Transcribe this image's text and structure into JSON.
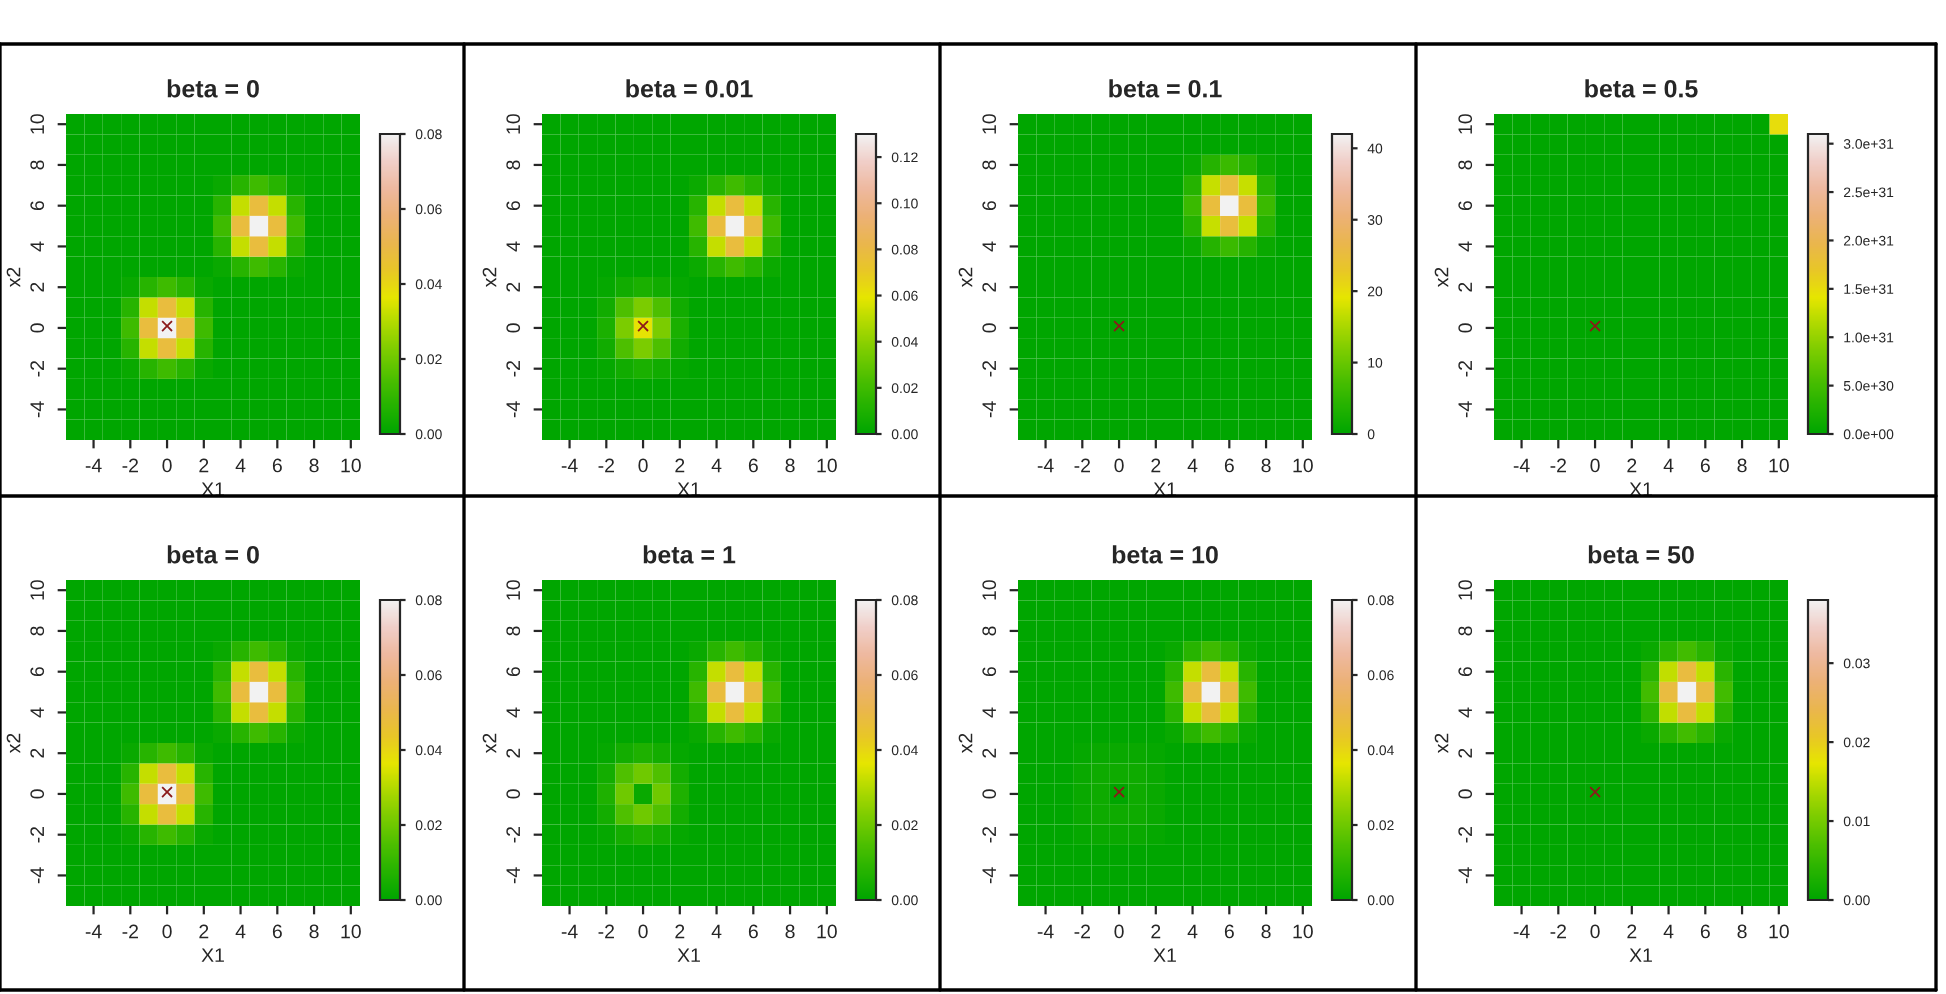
{
  "chart_data": [
    {
      "type": "heatmap",
      "title": "beta = 0",
      "xlabel": "X1",
      "ylabel": "x2",
      "categories": [
        null,
        "-4",
        null,
        "-2",
        null,
        "0",
        null,
        "2",
        null,
        "4",
        null,
        "6",
        null,
        "8",
        null,
        "10"
      ],
      "y_categories": [
        "10",
        null,
        "8",
        null,
        "6",
        null,
        "4",
        null,
        "2",
        null,
        "0",
        null,
        "-2",
        null,
        "-4",
        null
      ],
      "cells": [
        [
          0,
          0,
          0,
          0,
          0,
          0,
          0,
          0,
          0,
          0,
          0,
          0,
          0,
          0,
          0,
          0
        ],
        [
          0,
          0,
          0,
          0,
          0,
          0,
          0,
          0,
          0,
          0,
          0,
          0,
          0,
          0,
          0,
          0
        ],
        [
          0,
          0,
          0,
          0,
          0,
          0,
          0,
          0,
          0,
          0,
          0,
          0,
          0,
          0,
          0,
          0
        ],
        [
          0,
          0,
          0,
          0,
          0,
          0,
          0,
          0,
          0.002,
          0.008,
          0.012,
          0.008,
          0.002,
          0,
          0,
          0
        ],
        [
          0,
          0,
          0,
          0,
          0,
          0,
          0,
          0,
          0.008,
          0.032,
          0.048,
          0.032,
          0.008,
          0,
          0,
          0
        ],
        [
          0,
          0,
          0,
          0,
          0,
          0,
          0,
          0,
          0.012,
          0.048,
          0.08,
          0.048,
          0.012,
          0,
          0,
          0
        ],
        [
          0,
          0,
          0,
          0,
          0,
          0,
          0,
          0,
          0.008,
          0.032,
          0.048,
          0.032,
          0.008,
          0,
          0,
          0
        ],
        [
          0,
          0,
          0,
          0,
          0,
          0,
          0,
          0,
          0.002,
          0.008,
          0.012,
          0.008,
          0.002,
          0,
          0,
          0
        ],
        [
          0,
          0,
          0,
          0.002,
          0.008,
          0.012,
          0.008,
          0.002,
          0,
          0,
          0,
          0,
          0,
          0,
          0,
          0
        ],
        [
          0,
          0,
          0,
          0.008,
          0.032,
          0.048,
          0.032,
          0.008,
          0,
          0,
          0,
          0,
          0,
          0,
          0,
          0
        ],
        [
          0,
          0,
          0,
          0.012,
          0.048,
          0.08,
          0.048,
          0.012,
          0,
          0,
          0,
          0,
          0,
          0,
          0,
          0
        ],
        [
          0,
          0,
          0,
          0.008,
          0.032,
          0.048,
          0.032,
          0.008,
          0,
          0,
          0,
          0,
          0,
          0,
          0,
          0
        ],
        [
          0,
          0,
          0,
          0.002,
          0.008,
          0.012,
          0.008,
          0.002,
          0,
          0,
          0,
          0,
          0,
          0,
          0,
          0
        ],
        [
          0,
          0,
          0,
          0,
          0,
          0,
          0,
          0,
          0,
          0,
          0,
          0,
          0,
          0,
          0,
          0
        ],
        [
          0,
          0,
          0,
          0,
          0,
          0,
          0,
          0,
          0,
          0,
          0,
          0,
          0,
          0,
          0,
          0
        ],
        [
          0,
          0,
          0,
          0,
          0,
          0,
          0,
          0,
          0,
          0,
          0,
          0,
          0,
          0,
          0,
          0
        ]
      ],
      "clim": [
        0,
        0.08
      ],
      "cticks": [
        {
          "value": 0,
          "label": "0.00"
        },
        {
          "value": 0.02,
          "label": "0.02"
        },
        {
          "value": 0.04,
          "label": "0.04"
        },
        {
          "value": 0.06,
          "label": "0.06"
        },
        {
          "value": 0.08,
          "label": "0.08"
        }
      ],
      "annotations": [
        "×"
      ]
    },
    {
      "type": "heatmap",
      "title": "beta = 0.01",
      "xlabel": "X1",
      "ylabel": "x2",
      "categories": [
        null,
        "-4",
        null,
        "-2",
        null,
        "0",
        null,
        "2",
        null,
        "4",
        null,
        "6",
        null,
        "8",
        null,
        "10"
      ],
      "y_categories": [
        "10",
        null,
        "8",
        null,
        "6",
        null,
        "4",
        null,
        "2",
        null,
        "0",
        null,
        "-2",
        null,
        "-4",
        null
      ],
      "cells": [
        [
          0,
          0,
          0,
          0,
          0,
          0,
          0,
          0,
          0,
          0,
          0,
          0,
          0,
          0,
          0,
          0
        ],
        [
          0,
          0,
          0,
          0,
          0,
          0,
          0,
          0,
          0,
          0,
          0,
          0,
          0,
          0,
          0,
          0
        ],
        [
          0,
          0,
          0,
          0,
          0,
          0,
          0,
          0,
          0,
          0,
          0,
          0,
          0,
          0,
          0,
          0
        ],
        [
          0,
          0,
          0,
          0,
          0,
          0,
          0,
          0,
          0.004,
          0.013,
          0.02,
          0.013,
          0.004,
          0,
          0,
          0
        ],
        [
          0,
          0,
          0,
          0,
          0,
          0,
          0,
          0,
          0.013,
          0.052,
          0.078,
          0.052,
          0.013,
          0,
          0,
          0
        ],
        [
          0,
          0,
          0,
          0,
          0,
          0,
          0,
          0,
          0.02,
          0.078,
          0.13,
          0.078,
          0.02,
          0,
          0,
          0
        ],
        [
          0,
          0,
          0,
          0,
          0,
          0,
          0,
          0,
          0.013,
          0.052,
          0.078,
          0.052,
          0.013,
          0,
          0,
          0
        ],
        [
          0,
          0,
          0,
          0,
          0,
          0,
          0,
          0,
          0.004,
          0.013,
          0.02,
          0.013,
          0.004,
          0,
          0,
          0
        ],
        [
          0,
          0,
          0,
          0.002,
          0.006,
          0.009,
          0.006,
          0.002,
          0,
          0,
          0,
          0,
          0,
          0,
          0,
          0
        ],
        [
          0,
          0,
          0,
          0.006,
          0.024,
          0.036,
          0.024,
          0.006,
          0,
          0,
          0,
          0,
          0,
          0,
          0,
          0
        ],
        [
          0,
          0,
          0,
          0.009,
          0.036,
          0.06,
          0.036,
          0.009,
          0,
          0,
          0,
          0,
          0,
          0,
          0,
          0
        ],
        [
          0,
          0,
          0,
          0.006,
          0.024,
          0.036,
          0.024,
          0.006,
          0,
          0,
          0,
          0,
          0,
          0,
          0,
          0
        ],
        [
          0,
          0,
          0,
          0.002,
          0.006,
          0.009,
          0.006,
          0.002,
          0,
          0,
          0,
          0,
          0,
          0,
          0,
          0
        ],
        [
          0,
          0,
          0,
          0,
          0,
          0,
          0,
          0,
          0,
          0,
          0,
          0,
          0,
          0,
          0,
          0
        ],
        [
          0,
          0,
          0,
          0,
          0,
          0,
          0,
          0,
          0,
          0,
          0,
          0,
          0,
          0,
          0,
          0
        ],
        [
          0,
          0,
          0,
          0,
          0,
          0,
          0,
          0,
          0,
          0,
          0,
          0,
          0,
          0,
          0,
          0
        ]
      ],
      "clim": [
        0,
        0.13
      ],
      "cticks": [
        {
          "value": 0,
          "label": "0.00"
        },
        {
          "value": 0.02,
          "label": "0.02"
        },
        {
          "value": 0.04,
          "label": "0.04"
        },
        {
          "value": 0.06,
          "label": "0.06"
        },
        {
          "value": 0.08,
          "label": "0.08"
        },
        {
          "value": 0.1,
          "label": "0.10"
        },
        {
          "value": 0.12,
          "label": "0.12"
        }
      ],
      "annotations": [
        "×"
      ]
    },
    {
      "type": "heatmap",
      "title": "beta = 0.1",
      "xlabel": "X1",
      "ylabel": "x2",
      "categories": [
        null,
        "-4",
        null,
        "-2",
        null,
        "0",
        null,
        "2",
        null,
        "4",
        null,
        "6",
        null,
        "8",
        null,
        "10"
      ],
      "y_categories": [
        "10",
        null,
        "8",
        null,
        "6",
        null,
        "4",
        null,
        "2",
        null,
        "0",
        null,
        "-2",
        null,
        "-4",
        null
      ],
      "cells": [
        [
          0,
          0,
          0,
          0,
          0,
          0,
          0,
          0,
          0,
          0,
          0,
          0,
          0,
          0,
          0,
          0
        ],
        [
          0,
          0,
          0,
          0,
          0,
          0,
          0,
          0,
          0,
          0,
          0,
          0,
          0,
          0,
          0,
          0
        ],
        [
          0,
          0,
          0,
          0,
          0,
          0,
          0,
          0,
          0,
          1,
          4,
          6,
          4,
          1,
          0,
          0
        ],
        [
          0,
          0,
          0,
          0,
          0,
          0,
          0,
          0,
          0,
          4,
          17,
          25,
          17,
          4,
          0,
          0
        ],
        [
          0,
          0,
          0,
          0,
          0,
          0,
          0,
          0,
          0,
          6,
          25,
          42,
          25,
          6,
          0,
          0
        ],
        [
          0,
          0,
          0,
          0,
          0,
          0,
          0,
          0,
          0,
          4,
          17,
          25,
          17,
          4,
          0,
          0
        ],
        [
          0,
          0,
          0,
          0,
          0,
          0,
          0,
          0,
          0,
          1,
          4,
          6,
          4,
          1,
          0,
          0
        ],
        [
          0,
          0,
          0,
          0,
          0,
          0,
          0,
          0,
          0,
          0,
          0,
          0,
          0,
          0,
          0,
          0
        ],
        [
          0,
          0,
          0,
          0,
          0,
          0,
          0,
          0,
          0,
          0,
          0,
          0,
          0,
          0,
          0,
          0
        ],
        [
          0,
          0,
          0,
          0,
          0,
          0,
          0,
          0,
          0,
          0,
          0,
          0,
          0,
          0,
          0,
          0
        ],
        [
          0,
          0,
          0,
          0,
          0,
          0,
          0,
          0,
          0,
          0,
          0,
          0,
          0,
          0,
          0,
          0
        ],
        [
          0,
          0,
          0,
          0,
          0,
          0,
          0,
          0,
          0,
          0,
          0,
          0,
          0,
          0,
          0,
          0
        ],
        [
          0,
          0,
          0,
          0,
          0,
          0,
          0,
          0,
          0,
          0,
          0,
          0,
          0,
          0,
          0,
          0
        ],
        [
          0,
          0,
          0,
          0,
          0,
          0,
          0,
          0,
          0,
          0,
          0,
          0,
          0,
          0,
          0,
          0
        ],
        [
          0,
          0,
          0,
          0,
          0,
          0,
          0,
          0,
          0,
          0,
          0,
          0,
          0,
          0,
          0,
          0
        ],
        [
          0,
          0,
          0,
          0,
          0,
          0,
          0,
          0,
          0,
          0,
          0,
          0,
          0,
          0,
          0,
          0
        ]
      ],
      "clim": [
        0,
        42
      ],
      "cticks": [
        0,
        10,
        20,
        30,
        40
      ],
      "annotations": [
        "×"
      ]
    },
    {
      "type": "heatmap",
      "title": "beta = 0.5",
      "xlabel": "X1",
      "ylabel": "x2",
      "categories": [
        null,
        "-4",
        null,
        "-2",
        null,
        "0",
        null,
        "2",
        null,
        "4",
        null,
        "6",
        null,
        "8",
        null,
        "10"
      ],
      "y_categories": [
        "10",
        null,
        "8",
        null,
        "6",
        null,
        "4",
        null,
        "2",
        null,
        "0",
        null,
        "-2",
        null,
        "-4",
        null
      ],
      "cells": [
        [
          0,
          0,
          0,
          0,
          0,
          0,
          0,
          0,
          0,
          0,
          0,
          0,
          0,
          0,
          0,
          1.5e+31
        ],
        [
          0,
          0,
          0,
          0,
          0,
          0,
          0,
          0,
          0,
          0,
          0,
          0,
          0,
          0,
          0,
          0
        ],
        [
          0,
          0,
          0,
          0,
          0,
          0,
          0,
          0,
          0,
          0,
          0,
          0,
          0,
          0,
          0,
          0
        ],
        [
          0,
          0,
          0,
          0,
          0,
          0,
          0,
          0,
          0,
          0,
          0,
          0,
          0,
          0,
          0,
          0
        ],
        [
          0,
          0,
          0,
          0,
          0,
          0,
          0,
          0,
          0,
          0,
          0,
          0,
          0,
          0,
          0,
          0
        ],
        [
          0,
          0,
          0,
          0,
          0,
          0,
          0,
          0,
          0,
          0,
          0,
          0,
          0,
          0,
          0,
          0
        ],
        [
          0,
          0,
          0,
          0,
          0,
          0,
          0,
          0,
          0,
          0,
          0,
          0,
          0,
          0,
          0,
          0
        ],
        [
          0,
          0,
          0,
          0,
          0,
          0,
          0,
          0,
          0,
          0,
          0,
          0,
          0,
          0,
          0,
          0
        ],
        [
          0,
          0,
          0,
          0,
          0,
          0,
          0,
          0,
          0,
          0,
          0,
          0,
          0,
          0,
          0,
          0
        ],
        [
          0,
          0,
          0,
          0,
          0,
          0,
          0,
          0,
          0,
          0,
          0,
          0,
          0,
          0,
          0,
          0
        ],
        [
          0,
          0,
          0,
          0,
          0,
          0,
          0,
          0,
          0,
          0,
          0,
          0,
          0,
          0,
          0,
          0
        ],
        [
          0,
          0,
          0,
          0,
          0,
          0,
          0,
          0,
          0,
          0,
          0,
          0,
          0,
          0,
          0,
          0
        ],
        [
          0,
          0,
          0,
          0,
          0,
          0,
          0,
          0,
          0,
          0,
          0,
          0,
          0,
          0,
          0,
          0
        ],
        [
          0,
          0,
          0,
          0,
          0,
          0,
          0,
          0,
          0,
          0,
          0,
          0,
          0,
          0,
          0,
          0
        ],
        [
          0,
          0,
          0,
          0,
          0,
          0,
          0,
          0,
          0,
          0,
          0,
          0,
          0,
          0,
          0,
          0
        ],
        [
          0,
          0,
          0,
          0,
          0,
          0,
          0,
          0,
          0,
          0,
          0,
          0,
          0,
          0,
          0,
          0
        ]
      ],
      "clim": [
        0,
        3.1e+31
      ],
      "cticks": [
        {
          "value": 0,
          "label": "0.0e+00"
        },
        {
          "value": 5e+30,
          "label": "5.0e+30"
        },
        {
          "value": 1e+31,
          "label": "1.0e+31"
        },
        {
          "value": 1.5e+31,
          "label": "1.5e+31"
        },
        {
          "value": 2e+31,
          "label": "2.0e+31"
        },
        {
          "value": 2.5e+31,
          "label": "2.5e+31"
        },
        {
          "value": 3e+31,
          "label": "3.0e+31"
        }
      ],
      "annotations": [
        "×"
      ]
    },
    {
      "type": "heatmap",
      "title": "beta = 0",
      "xlabel": "X1",
      "ylabel": "x2",
      "categories": [
        null,
        "-4",
        null,
        "-2",
        null,
        "0",
        null,
        "2",
        null,
        "4",
        null,
        "6",
        null,
        "8",
        null,
        "10"
      ],
      "y_categories": [
        "10",
        null,
        "8",
        null,
        "6",
        null,
        "4",
        null,
        "2",
        null,
        "0",
        null,
        "-2",
        null,
        "-4",
        null
      ],
      "cells": [
        [
          0,
          0,
          0,
          0,
          0,
          0,
          0,
          0,
          0,
          0,
          0,
          0,
          0,
          0,
          0,
          0
        ],
        [
          0,
          0,
          0,
          0,
          0,
          0,
          0,
          0,
          0,
          0,
          0,
          0,
          0,
          0,
          0,
          0
        ],
        [
          0,
          0,
          0,
          0,
          0,
          0,
          0,
          0,
          0,
          0,
          0,
          0,
          0,
          0,
          0,
          0
        ],
        [
          0,
          0,
          0,
          0,
          0,
          0,
          0,
          0,
          0.002,
          0.008,
          0.012,
          0.008,
          0.002,
          0,
          0,
          0
        ],
        [
          0,
          0,
          0,
          0,
          0,
          0,
          0,
          0,
          0.008,
          0.032,
          0.048,
          0.032,
          0.008,
          0,
          0,
          0
        ],
        [
          0,
          0,
          0,
          0,
          0,
          0,
          0,
          0,
          0.012,
          0.048,
          0.08,
          0.048,
          0.012,
          0,
          0,
          0
        ],
        [
          0,
          0,
          0,
          0,
          0,
          0,
          0,
          0,
          0.008,
          0.032,
          0.048,
          0.032,
          0.008,
          0,
          0,
          0
        ],
        [
          0,
          0,
          0,
          0,
          0,
          0,
          0,
          0,
          0.002,
          0.008,
          0.012,
          0.008,
          0.002,
          0,
          0,
          0
        ],
        [
          0,
          0,
          0,
          0.002,
          0.008,
          0.012,
          0.008,
          0.002,
          0,
          0,
          0,
          0,
          0,
          0,
          0,
          0
        ],
        [
          0,
          0,
          0,
          0.008,
          0.032,
          0.048,
          0.032,
          0.008,
          0,
          0,
          0,
          0,
          0,
          0,
          0,
          0
        ],
        [
          0,
          0,
          0,
          0.012,
          0.048,
          0.08,
          0.048,
          0.012,
          0,
          0,
          0,
          0,
          0,
          0,
          0,
          0
        ],
        [
          0,
          0,
          0,
          0.008,
          0.032,
          0.048,
          0.032,
          0.008,
          0,
          0,
          0,
          0,
          0,
          0,
          0,
          0
        ],
        [
          0,
          0,
          0,
          0.002,
          0.008,
          0.012,
          0.008,
          0.002,
          0,
          0,
          0,
          0,
          0,
          0,
          0,
          0
        ],
        [
          0,
          0,
          0,
          0,
          0,
          0,
          0,
          0,
          0,
          0,
          0,
          0,
          0,
          0,
          0,
          0
        ],
        [
          0,
          0,
          0,
          0,
          0,
          0,
          0,
          0,
          0,
          0,
          0,
          0,
          0,
          0,
          0,
          0
        ],
        [
          0,
          0,
          0,
          0,
          0,
          0,
          0,
          0,
          0,
          0,
          0,
          0,
          0,
          0,
          0,
          0
        ]
      ],
      "clim": [
        0,
        0.08
      ],
      "cticks": [
        {
          "value": 0,
          "label": "0.00"
        },
        {
          "value": 0.02,
          "label": "0.02"
        },
        {
          "value": 0.04,
          "label": "0.04"
        },
        {
          "value": 0.06,
          "label": "0.06"
        },
        {
          "value": 0.08,
          "label": "0.08"
        }
      ],
      "annotations": [
        "×"
      ]
    },
    {
      "type": "heatmap",
      "title": "beta = 1",
      "xlabel": "X1",
      "ylabel": "x2",
      "categories": [
        null,
        "-4",
        null,
        "-2",
        null,
        "0",
        null,
        "2",
        null,
        "4",
        null,
        "6",
        null,
        "8",
        null,
        "10"
      ],
      "y_categories": [
        "10",
        null,
        "8",
        null,
        "6",
        null,
        "4",
        null,
        "2",
        null,
        "0",
        null,
        "-2",
        null,
        "-4",
        null
      ],
      "cells": [
        [
          0,
          0,
          0,
          0,
          0,
          0,
          0,
          0,
          0,
          0,
          0,
          0,
          0,
          0,
          0,
          0
        ],
        [
          0,
          0,
          0,
          0,
          0,
          0,
          0,
          0,
          0,
          0,
          0,
          0,
          0,
          0,
          0,
          0
        ],
        [
          0,
          0,
          0,
          0,
          0,
          0,
          0,
          0,
          0,
          0,
          0,
          0,
          0,
          0,
          0,
          0
        ],
        [
          0,
          0,
          0,
          0,
          0,
          0,
          0,
          0,
          0.002,
          0.008,
          0.012,
          0.008,
          0.002,
          0,
          0,
          0
        ],
        [
          0,
          0,
          0,
          0,
          0,
          0,
          0,
          0,
          0.008,
          0.032,
          0.048,
          0.032,
          0.008,
          0,
          0,
          0
        ],
        [
          0,
          0,
          0,
          0,
          0,
          0,
          0,
          0,
          0.012,
          0.048,
          0.08,
          0.048,
          0.012,
          0,
          0,
          0
        ],
        [
          0,
          0,
          0,
          0,
          0,
          0,
          0,
          0,
          0.008,
          0.032,
          0.048,
          0.032,
          0.008,
          0,
          0,
          0
        ],
        [
          0,
          0,
          0,
          0,
          0,
          0,
          0,
          0,
          0.002,
          0.008,
          0.012,
          0.008,
          0.002,
          0,
          0,
          0
        ],
        [
          0,
          0,
          0,
          0.001,
          0.004,
          0.006,
          0.004,
          0.001,
          0,
          0,
          0,
          0,
          0,
          0,
          0,
          0
        ],
        [
          0,
          0,
          0,
          0.004,
          0.015,
          0.02,
          0.015,
          0.004,
          0,
          0,
          0,
          0,
          0,
          0,
          0,
          0
        ],
        [
          0,
          0,
          0,
          0.006,
          0.02,
          0.002,
          0.02,
          0.006,
          0,
          0,
          0,
          0,
          0,
          0,
          0,
          0
        ],
        [
          0,
          0,
          0,
          0.004,
          0.015,
          0.02,
          0.015,
          0.004,
          0,
          0,
          0,
          0,
          0,
          0,
          0,
          0
        ],
        [
          0,
          0,
          0,
          0.001,
          0.004,
          0.006,
          0.004,
          0.001,
          0,
          0,
          0,
          0,
          0,
          0,
          0,
          0
        ],
        [
          0,
          0,
          0,
          0,
          0,
          0,
          0,
          0,
          0,
          0,
          0,
          0,
          0,
          0,
          0,
          0
        ],
        [
          0,
          0,
          0,
          0,
          0,
          0,
          0,
          0,
          0,
          0,
          0,
          0,
          0,
          0,
          0,
          0
        ],
        [
          0,
          0,
          0,
          0,
          0,
          0,
          0,
          0,
          0,
          0,
          0,
          0,
          0,
          0,
          0,
          0
        ]
      ],
      "clim": [
        0,
        0.08
      ],
      "cticks": [
        {
          "value": 0,
          "label": "0.00"
        },
        {
          "value": 0.02,
          "label": "0.02"
        },
        {
          "value": 0.04,
          "label": "0.04"
        },
        {
          "value": 0.06,
          "label": "0.06"
        },
        {
          "value": 0.08,
          "label": "0.08"
        }
      ]
    },
    {
      "type": "heatmap",
      "title": "beta = 10",
      "xlabel": "X1",
      "ylabel": "x2",
      "categories": [
        null,
        "-4",
        null,
        "-2",
        null,
        "0",
        null,
        "2",
        null,
        "4",
        null,
        "6",
        null,
        "8",
        null,
        "10"
      ],
      "y_categories": [
        "10",
        null,
        "8",
        null,
        "6",
        null,
        "4",
        null,
        "2",
        null,
        "0",
        null,
        "-2",
        null,
        "-4",
        null
      ],
      "cells": [
        [
          0,
          0,
          0,
          0,
          0,
          0,
          0,
          0,
          0,
          0,
          0,
          0,
          0,
          0,
          0,
          0
        ],
        [
          0,
          0,
          0,
          0,
          0,
          0,
          0,
          0,
          0,
          0,
          0,
          0,
          0,
          0,
          0,
          0
        ],
        [
          0,
          0,
          0,
          0,
          0,
          0,
          0,
          0,
          0,
          0,
          0,
          0,
          0,
          0,
          0,
          0
        ],
        [
          0,
          0,
          0,
          0,
          0,
          0,
          0,
          0,
          0.002,
          0.008,
          0.012,
          0.008,
          0.002,
          0,
          0,
          0
        ],
        [
          0,
          0,
          0,
          0,
          0,
          0,
          0,
          0,
          0.008,
          0.032,
          0.048,
          0.032,
          0.008,
          0,
          0,
          0
        ],
        [
          0,
          0,
          0,
          0,
          0,
          0,
          0,
          0,
          0.012,
          0.048,
          0.08,
          0.048,
          0.012,
          0,
          0,
          0
        ],
        [
          0,
          0,
          0,
          0,
          0,
          0,
          0,
          0,
          0.008,
          0.032,
          0.048,
          0.032,
          0.008,
          0,
          0,
          0
        ],
        [
          0,
          0,
          0,
          0,
          0,
          0,
          0,
          0,
          0.002,
          0.008,
          0.012,
          0.008,
          0.002,
          0,
          0,
          0
        ],
        [
          0,
          0,
          0,
          0.001,
          0.002,
          0.002,
          0.002,
          0.001,
          0,
          0,
          0,
          0,
          0,
          0,
          0,
          0
        ],
        [
          0,
          0,
          0,
          0.002,
          0.003,
          0.003,
          0.003,
          0.002,
          0,
          0,
          0,
          0,
          0,
          0,
          0,
          0
        ],
        [
          0,
          0,
          0,
          0.002,
          0.003,
          0,
          0.003,
          0.002,
          0,
          0,
          0,
          0,
          0,
          0,
          0,
          0
        ],
        [
          0,
          0,
          0,
          0.002,
          0.003,
          0.003,
          0.003,
          0.002,
          0,
          0,
          0,
          0,
          0,
          0,
          0,
          0
        ],
        [
          0,
          0,
          0,
          0.001,
          0.002,
          0.002,
          0.002,
          0.001,
          0,
          0,
          0,
          0,
          0,
          0,
          0,
          0
        ],
        [
          0,
          0,
          0,
          0,
          0,
          0,
          0,
          0,
          0,
          0,
          0,
          0,
          0,
          0,
          0,
          0
        ],
        [
          0,
          0,
          0,
          0,
          0,
          0,
          0,
          0,
          0,
          0,
          0,
          0,
          0,
          0,
          0,
          0
        ],
        [
          0,
          0,
          0,
          0,
          0,
          0,
          0,
          0,
          0,
          0,
          0,
          0,
          0,
          0,
          0,
          0
        ]
      ],
      "clim": [
        0,
        0.08
      ],
      "cticks": [
        {
          "value": 0,
          "label": "0.00"
        },
        {
          "value": 0.02,
          "label": "0.02"
        },
        {
          "value": 0.04,
          "label": "0.04"
        },
        {
          "value": 0.06,
          "label": "0.06"
        },
        {
          "value": 0.08,
          "label": "0.08"
        }
      ],
      "annotations": [
        "×"
      ]
    },
    {
      "type": "heatmap",
      "title": "beta = 50",
      "xlabel": "X1",
      "ylabel": "x2",
      "categories": [
        null,
        "-4",
        null,
        "-2",
        null,
        "0",
        null,
        "2",
        null,
        "4",
        null,
        "6",
        null,
        "8",
        null,
        "10"
      ],
      "y_categories": [
        "10",
        null,
        "8",
        null,
        "6",
        null,
        "4",
        null,
        "2",
        null,
        "0",
        null,
        "-2",
        null,
        "-4",
        null
      ],
      "cells": [
        [
          0,
          0,
          0,
          0,
          0,
          0,
          0,
          0,
          0,
          0,
          0,
          0,
          0,
          0,
          0,
          0
        ],
        [
          0,
          0,
          0,
          0,
          0,
          0,
          0,
          0,
          0,
          0,
          0,
          0,
          0,
          0,
          0,
          0
        ],
        [
          0,
          0,
          0,
          0,
          0,
          0,
          0,
          0,
          0,
          0,
          0,
          0,
          0,
          0,
          0,
          0
        ],
        [
          0,
          0,
          0,
          0,
          0,
          0,
          0,
          0,
          0.001,
          0.004,
          0.006,
          0.004,
          0.001,
          0,
          0,
          0
        ],
        [
          0,
          0,
          0,
          0,
          0,
          0,
          0,
          0,
          0.004,
          0.015,
          0.023,
          0.015,
          0.004,
          0,
          0,
          0
        ],
        [
          0,
          0,
          0,
          0,
          0,
          0,
          0,
          0,
          0.006,
          0.023,
          0.038,
          0.023,
          0.006,
          0,
          0,
          0
        ],
        [
          0,
          0,
          0,
          0,
          0,
          0,
          0,
          0,
          0.004,
          0.015,
          0.023,
          0.015,
          0.004,
          0,
          0,
          0
        ],
        [
          0,
          0,
          0,
          0,
          0,
          0,
          0,
          0,
          0.001,
          0.004,
          0.006,
          0.004,
          0.001,
          0,
          0,
          0
        ],
        [
          0,
          0,
          0,
          0,
          0,
          0,
          0,
          0,
          0,
          0,
          0,
          0,
          0,
          0,
          0,
          0
        ],
        [
          0,
          0,
          0,
          0,
          0,
          0,
          0,
          0,
          0,
          0,
          0,
          0,
          0,
          0,
          0,
          0
        ],
        [
          0,
          0,
          0,
          0,
          0,
          0,
          0,
          0,
          0,
          0,
          0,
          0,
          0,
          0,
          0,
          0
        ],
        [
          0,
          0,
          0,
          0,
          0,
          0,
          0,
          0,
          0,
          0,
          0,
          0,
          0,
          0,
          0,
          0
        ],
        [
          0,
          0,
          0,
          0,
          0,
          0,
          0,
          0,
          0,
          0,
          0,
          0,
          0,
          0,
          0,
          0
        ],
        [
          0,
          0,
          0,
          0,
          0,
          0,
          0,
          0,
          0,
          0,
          0,
          0,
          0,
          0,
          0,
          0
        ],
        [
          0,
          0,
          0,
          0,
          0,
          0,
          0,
          0,
          0,
          0,
          0,
          0,
          0,
          0,
          0,
          0
        ],
        [
          0,
          0,
          0,
          0,
          0,
          0,
          0,
          0,
          0,
          0,
          0,
          0,
          0,
          0,
          0,
          0
        ]
      ],
      "clim": [
        0,
        0.038
      ],
      "cticks": [
        {
          "value": 0,
          "label": "0.00"
        },
        {
          "value": 0.01,
          "label": "0.01"
        },
        {
          "value": 0.02,
          "label": "0.02"
        },
        {
          "value": 0.03,
          "label": "0.03"
        }
      ],
      "annotations": [
        "×"
      ]
    }
  ]
}
